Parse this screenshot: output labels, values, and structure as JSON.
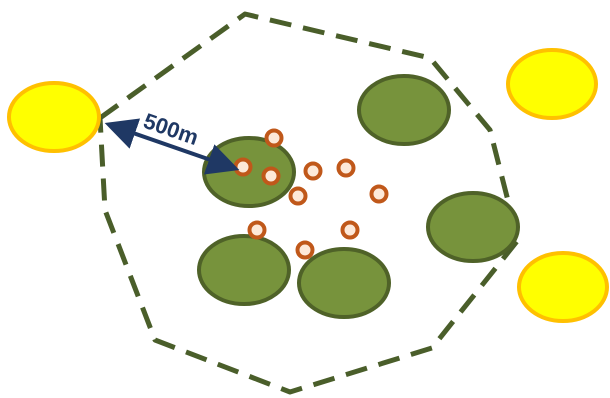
{
  "colors": {
    "boundary": "#4a5e2a",
    "green_fill": "#77933c",
    "green_stroke": "#4f6228",
    "yellow_fill": "#ffff00",
    "yellow_stroke": "#ffc000",
    "dot_fill": "#fde9d9",
    "dot_stroke": "#c0581a",
    "arrow": "#1f3864"
  },
  "distance_label": "500m"
}
